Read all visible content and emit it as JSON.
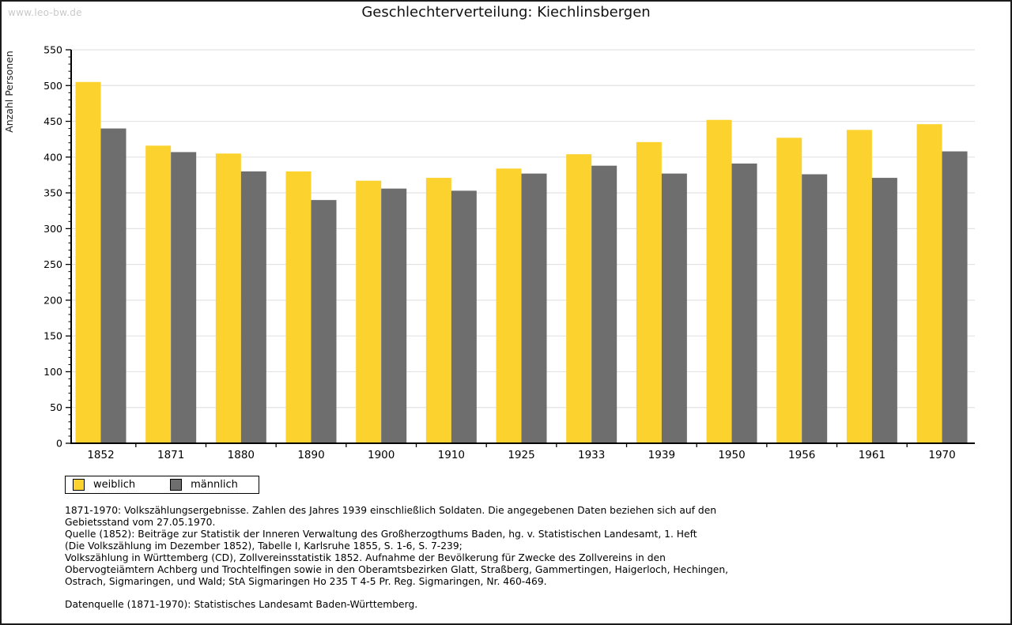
{
  "watermark": "www.leo-bw.de",
  "title": "Geschlechterverteilung: Kiechlinsbergen",
  "chart_data": {
    "type": "bar",
    "title": "Geschlechterverteilung: Kiechlinsbergen",
    "ylabel": "Anzahl Personen",
    "xlabel": "",
    "categories": [
      "1852",
      "1871",
      "1880",
      "1890",
      "1900",
      "1910",
      "1925",
      "1933",
      "1939",
      "1950",
      "1956",
      "1961",
      "1970"
    ],
    "series": [
      {
        "name": "weiblich",
        "color": "#FCD22F",
        "values": [
          505,
          416,
          405,
          380,
          367,
          371,
          384,
          404,
          421,
          452,
          427,
          438,
          446
        ]
      },
      {
        "name": "männlich",
        "color": "#6E6E6E",
        "values": [
          440,
          407,
          380,
          340,
          356,
          353,
          377,
          388,
          377,
          391,
          376,
          371,
          408
        ]
      }
    ],
    "ylim": [
      0,
      550
    ],
    "ytick_step": 50,
    "y_minor_tick_step": 10,
    "grid": true,
    "gridline_color": "#e3e3e3",
    "axis_color": "#000000",
    "legend_position": "bottom-left"
  },
  "legend": {
    "items": [
      {
        "label": "weiblich",
        "color": "#FCD22F"
      },
      {
        "label": "männlich",
        "color": "#6E6E6E"
      }
    ]
  },
  "footnotes": {
    "lines": [
      "1871-1970: Volkszählungsergebnisse. Zahlen des Jahres 1939 einschließlich Soldaten. Die angegebenen Daten beziehen sich auf den",
      "Gebietsstand vom 27.05.1970.",
      "Quelle (1852): Beiträge zur Statistik der Inneren Verwaltung des Großherzogthums Baden, hg. v. Statistischen Landesamt, 1. Heft",
      "(Die Volkszählung im Dezember 1852), Tabelle I, Karlsruhe 1855, S. 1-6, S. 7-239;",
      "Volkszählung in Württemberg (CD), Zollvereinsstatistik 1852. Aufnahme der Bevölkerung für Zwecke des Zollvereins in den",
      "Obervogteiämtern Achberg und Trochtelfingen sowie in den Oberamtsbezirken Glatt, Straßberg, Gammertingen, Haigerloch, Hechingen,",
      "Ostrach, Sigmaringen, und Wald; StA Sigmaringen Ho 235 T 4-5 Pr. Reg. Sigmaringen, Nr. 460-469."
    ],
    "datasource": "Datenquelle (1871-1970): Statistisches Landesamt Baden-Württemberg."
  }
}
